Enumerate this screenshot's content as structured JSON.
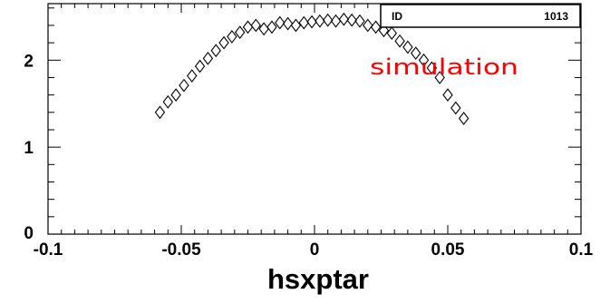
{
  "chart_data": {
    "type": "scatter",
    "xlabel": "hsxptar",
    "xlim": [
      -0.1,
      0.1
    ],
    "ylim": [
      0,
      2.65
    ],
    "x_ticks": [
      "-0.1",
      "-0.05",
      "0",
      "0.05",
      "0.1"
    ],
    "y_ticks": [
      "0",
      "1",
      "2"
    ],
    "marker": "open-diamond",
    "annotation": "simulation",
    "annotation_color": "#ff0000",
    "stats_box": {
      "label": "ID",
      "value": "1013"
    },
    "grid": false,
    "series": [
      {
        "x": [
          -0.058,
          -0.055,
          -0.052,
          -0.049,
          -0.046,
          -0.043,
          -0.04,
          -0.037,
          -0.034,
          -0.031,
          -0.028,
          -0.025,
          -0.022,
          -0.019,
          -0.016,
          -0.013,
          -0.01,
          -0.007,
          -0.004,
          -0.001,
          0.002,
          0.005,
          0.008,
          0.011,
          0.014,
          0.017,
          0.02,
          0.023,
          0.026,
          0.029,
          0.032,
          0.035,
          0.038,
          0.041,
          0.044,
          0.047,
          0.05,
          0.053,
          0.056
        ],
        "y": [
          1.4,
          1.52,
          1.6,
          1.71,
          1.82,
          1.93,
          2.02,
          2.11,
          2.2,
          2.27,
          2.32,
          2.38,
          2.4,
          2.36,
          2.38,
          2.43,
          2.42,
          2.4,
          2.43,
          2.44,
          2.45,
          2.46,
          2.45,
          2.47,
          2.46,
          2.45,
          2.4,
          2.38,
          2.34,
          2.31,
          2.22,
          2.15,
          2.08,
          2.0,
          1.91,
          1.8,
          1.6,
          1.45,
          1.33
        ]
      }
    ]
  }
}
